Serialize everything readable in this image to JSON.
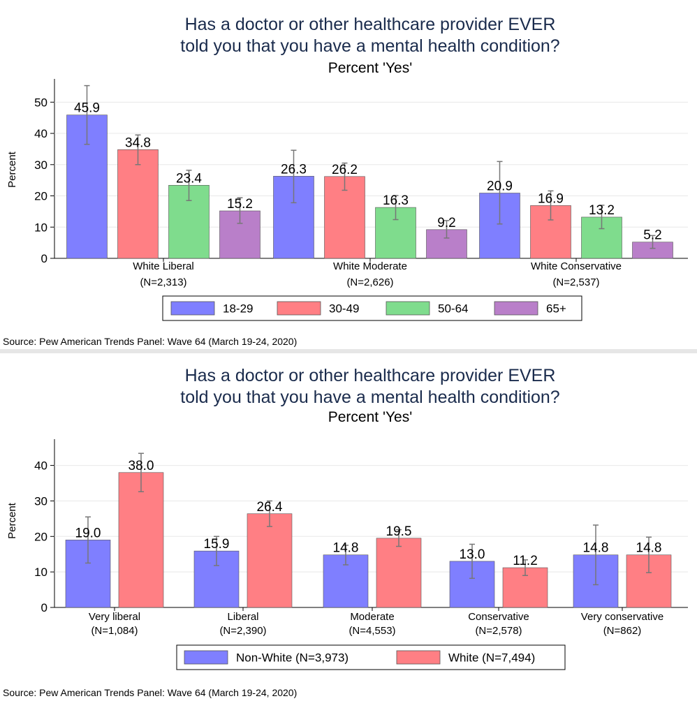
{
  "charts": [
    {
      "title_line1": "Has a doctor or other healthcare provider EVER",
      "title_line2": "told you that you have a mental health condition?",
      "subtitle": "Percent 'Yes'",
      "source": "Source: Pew American Trends Panel: Wave 64 (March 19-24, 2020)"
    },
    {
      "title_line1": "Has a doctor or other healthcare provider EVER",
      "title_line2": "told you that you have a mental health condition?",
      "subtitle": "Percent 'Yes'",
      "source": "Source: Pew American Trends Panel: Wave 64 (March 19-24, 2020)"
    }
  ],
  "colors": {
    "blue": "#7f7fff",
    "red": "#ff7f84",
    "green": "#7fdc8d",
    "purple": "#b97fc9"
  },
  "chart_data": [
    {
      "type": "bar",
      "title": "Has a doctor or other healthcare provider EVER told you that you have a mental health condition?",
      "subtitle": "Percent 'Yes'",
      "ylabel": "Percent",
      "ylim": [
        0,
        57
      ],
      "yticks": [
        0,
        10,
        20,
        30,
        40,
        50
      ],
      "grid": true,
      "legend_position": "bottom",
      "categories": [
        "White Liberal",
        "White Moderate",
        "White Conservative"
      ],
      "category_n": [
        "(N=2,313)",
        "(N=2,626)",
        "(N=2,537)"
      ],
      "series": [
        {
          "name": "18-29",
          "color": "#7f7fff",
          "values": [
            45.9,
            26.3,
            20.9
          ],
          "labels": [
            "45.9",
            "26.3",
            "20.9"
          ],
          "ci_low": [
            36.5,
            17.8,
            11.0
          ],
          "ci_high": [
            55.3,
            34.6,
            31.0
          ]
        },
        {
          "name": "30-49",
          "color": "#ff7f84",
          "values": [
            34.8,
            26.2,
            16.9
          ],
          "labels": [
            "34.8",
            "26.2",
            "16.9"
          ],
          "ci_low": [
            30.0,
            21.8,
            12.3
          ],
          "ci_high": [
            39.5,
            30.5,
            21.6
          ]
        },
        {
          "name": "50-64",
          "color": "#7fdc8d",
          "values": [
            23.4,
            16.3,
            13.2
          ],
          "labels": [
            "23.4",
            "16.3",
            "13.2"
          ],
          "ci_low": [
            18.5,
            12.4,
            9.5
          ],
          "ci_high": [
            28.2,
            20.1,
            17.0
          ]
        },
        {
          "name": "65+",
          "color": "#b97fc9",
          "values": [
            15.2,
            9.2,
            5.2
          ],
          "labels": [
            "15.2",
            "9.2",
            "5.2"
          ],
          "ci_low": [
            11.2,
            6.5,
            3.2
          ],
          "ci_high": [
            19.4,
            12.1,
            7.3
          ]
        }
      ]
    },
    {
      "type": "bar",
      "title": "Has a doctor or other healthcare provider EVER told you that you have a mental health condition?",
      "subtitle": "Percent 'Yes'",
      "ylabel": "Percent",
      "ylim": [
        0,
        47
      ],
      "yticks": [
        0,
        10,
        20,
        30,
        40
      ],
      "grid": true,
      "legend_position": "bottom",
      "categories": [
        "Very liberal",
        "Liberal",
        "Moderate",
        "Conservative",
        "Very conservative"
      ],
      "category_n": [
        "(N=1,084)",
        "(N=2,390)",
        "(N=4,553)",
        "(N=2,578)",
        "(N=862)"
      ],
      "series": [
        {
          "name": "Non-White (N=3,973)",
          "color": "#7f7fff",
          "values": [
            19.0,
            15.9,
            14.8,
            13.0,
            14.8
          ],
          "labels": [
            "19.0",
            "15.9",
            "14.8",
            "13.0",
            "14.8"
          ],
          "ci_low": [
            12.5,
            11.8,
            12.0,
            8.2,
            6.4
          ],
          "ci_high": [
            25.5,
            20.0,
            17.5,
            17.8,
            23.2
          ]
        },
        {
          "name": "White (N=7,494)",
          "color": "#ff7f84",
          "values": [
            38.0,
            26.4,
            19.5,
            11.2,
            14.8
          ],
          "labels": [
            "38.0",
            "26.4",
            "19.5",
            "11.2",
            "14.8"
          ],
          "ci_low": [
            32.6,
            22.8,
            17.2,
            9.0,
            9.8
          ],
          "ci_high": [
            43.4,
            30.0,
            21.9,
            13.4,
            19.8
          ]
        }
      ]
    }
  ]
}
